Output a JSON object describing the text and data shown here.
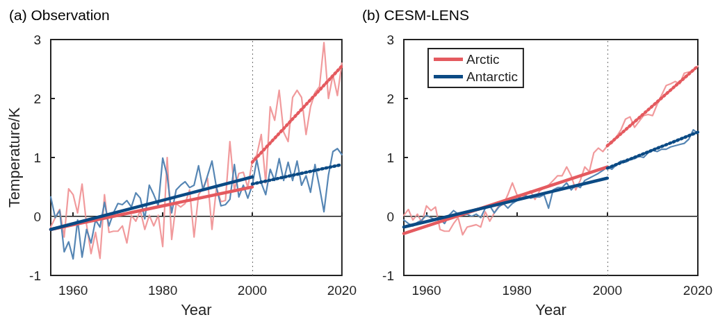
{
  "chart_data": [
    {
      "type": "line",
      "title": "(a) Observation",
      "xlabel": "Year",
      "ylabel": "Temperature/K",
      "xlim": [
        1955,
        2020
      ],
      "xticks": [
        1960,
        1980,
        2000,
        2020
      ],
      "ylim": [
        -1,
        3
      ],
      "yticks": [
        -1,
        0,
        1,
        2,
        3
      ],
      "grid": false,
      "legend": false,
      "marker": "none",
      "x": [
        1955,
        1956,
        1957,
        1958,
        1959,
        1960,
        1961,
        1962,
        1963,
        1964,
        1965,
        1966,
        1967,
        1968,
        1969,
        1970,
        1971,
        1972,
        1973,
        1974,
        1975,
        1976,
        1977,
        1978,
        1979,
        1980,
        1981,
        1982,
        1983,
        1984,
        1985,
        1986,
        1987,
        1988,
        1989,
        1990,
        1991,
        1992,
        1993,
        1994,
        1995,
        1996,
        1997,
        1998,
        1999,
        2000,
        2001,
        2002,
        2003,
        2004,
        2005,
        2006,
        2007,
        2008,
        2009,
        2010,
        2011,
        2012,
        2013,
        2014,
        2015,
        2016,
        2017,
        2018,
        2019,
        2020
      ],
      "ref_lines": [
        {
          "axis": "y",
          "value": 0,
          "color": "#808080",
          "line_style": "solid"
        },
        {
          "axis": "x",
          "value": 2000,
          "color": "#707070",
          "line_style": "dotted"
        }
      ],
      "series": [
        {
          "color": "#f19a9c",
          "line_style": "solid",
          "values": [
            -0.18,
            -0.02,
            0.12,
            -0.35,
            0.47,
            0.37,
            0.06,
            0.55,
            -0.14,
            -0.63,
            -0.27,
            -0.71,
            0.37,
            -0.27,
            -0.25,
            -0.25,
            -0.16,
            -0.45,
            0.02,
            -0.08,
            0.1,
            -0.22,
            0.02,
            -0.16,
            0.02,
            -0.51,
            1.0,
            -0.39,
            0.22,
            0.16,
            0.22,
            0.45,
            -0.35,
            0.37,
            0.49,
            0.65,
            -0.22,
            0.49,
            0.25,
            0.27,
            1.27,
            0.45,
            0.73,
            0.75,
            0.49,
            0.94,
            1.04,
            1.39,
            0.57,
            1.86,
            1.63,
            2.14,
            1.43,
            1.27,
            2.02,
            2.14,
            2.02,
            1.39,
            1.86,
            2.1,
            2.2,
            2.95,
            2.0,
            2.4,
            2.05,
            2.6
          ]
        },
        {
          "color": "#5686b4",
          "line_style": "solid",
          "values": [
            0.33,
            -0.02,
            0.1,
            -0.6,
            -0.43,
            -0.72,
            -0.06,
            -0.69,
            -0.22,
            -0.45,
            -0.06,
            -0.18,
            0.24,
            -0.16,
            0.06,
            0.22,
            0.2,
            0.27,
            0.16,
            0.4,
            0.31,
            -0.04,
            0.53,
            0.37,
            0.18,
            0.99,
            0.69,
            0.06,
            0.45,
            0.53,
            0.59,
            0.49,
            0.53,
            0.86,
            0.45,
            0.69,
            0.94,
            0.49,
            0.18,
            0.2,
            0.29,
            0.88,
            0.33,
            0.53,
            0.31,
            0.53,
            0.96,
            0.57,
            0.37,
            0.8,
            0.61,
            0.98,
            0.61,
            0.92,
            0.61,
            0.94,
            0.53,
            0.69,
            0.41,
            0.88,
            0.5,
            0.08,
            0.7,
            1.1,
            1.15,
            1.05
          ]
        },
        {
          "color": "#e45a5f",
          "line_style": "solid",
          "x": [
            1955,
            2000
          ],
          "values": [
            -0.22,
            0.5
          ]
        },
        {
          "color": "#0b4a84",
          "line_style": "solid",
          "x": [
            1955,
            2000
          ],
          "values": [
            -0.22,
            0.67
          ]
        },
        {
          "color": "#e45a5f",
          "line_style": "dotted",
          "x": [
            2000,
            2020
          ],
          "values": [
            0.92,
            2.55
          ]
        },
        {
          "color": "#0b4a84",
          "line_style": "dotted",
          "x": [
            2000,
            2020
          ],
          "values": [
            0.55,
            0.88
          ]
        }
      ]
    },
    {
      "type": "line",
      "title": "(b) CESM-LENS",
      "xlabel": "Year",
      "xlim": [
        1955,
        2020
      ],
      "xticks": [
        1960,
        1980,
        2000,
        2020
      ],
      "ylim": [
        -1,
        3
      ],
      "yticks": [
        -1,
        0,
        1,
        2,
        3
      ],
      "grid": false,
      "legend": "top left",
      "marker": "none",
      "x": [
        1955,
        1956,
        1957,
        1958,
        1959,
        1960,
        1961,
        1962,
        1963,
        1964,
        1965,
        1966,
        1967,
        1968,
        1969,
        1970,
        1971,
        1972,
        1973,
        1974,
        1975,
        1976,
        1977,
        1978,
        1979,
        1980,
        1981,
        1982,
        1983,
        1984,
        1985,
        1986,
        1987,
        1988,
        1989,
        1990,
        1991,
        1992,
        1993,
        1994,
        1995,
        1996,
        1997,
        1998,
        1999,
        2000,
        2001,
        2002,
        2003,
        2004,
        2005,
        2006,
        2007,
        2008,
        2009,
        2010,
        2011,
        2012,
        2013,
        2014,
        2015,
        2016,
        2017,
        2018,
        2019,
        2020
      ],
      "ref_lines": [
        {
          "axis": "y",
          "value": 0,
          "color": "#808080",
          "line_style": "solid"
        },
        {
          "axis": "x",
          "value": 2000,
          "color": "#707070",
          "line_style": "dotted"
        }
      ],
      "series": [
        {
          "color": "#f19a9c",
          "line_style": "solid",
          "values": [
            0.02,
            0.12,
            -0.06,
            0.04,
            -0.1,
            0.18,
            0.1,
            0.16,
            -0.22,
            -0.25,
            -0.25,
            -0.12,
            -0.02,
            -0.31,
            -0.18,
            -0.16,
            -0.14,
            -0.18,
            0.08,
            -0.08,
            0.06,
            0.18,
            0.2,
            0.37,
            0.57,
            0.37,
            0.31,
            0.37,
            0.43,
            0.29,
            0.43,
            0.49,
            0.53,
            0.61,
            0.69,
            0.69,
            0.84,
            0.69,
            0.45,
            0.61,
            0.84,
            0.76,
            1.08,
            1.16,
            1.1,
            1.2,
            1.24,
            1.35,
            1.47,
            1.65,
            1.69,
            1.51,
            1.61,
            1.71,
            1.73,
            1.71,
            1.9,
            2.06,
            2.22,
            2.25,
            2.29,
            2.25,
            2.43,
            2.45,
            2.47,
            2.55
          ]
        },
        {
          "color": "#5686b4",
          "line_style": "solid",
          "values": [
            -0.06,
            -0.12,
            -0.16,
            -0.1,
            -0.06,
            0.02,
            -0.02,
            -0.06,
            -0.04,
            -0.12,
            0.02,
            0.1,
            0.04,
            0.02,
            0.04,
            0,
            0.04,
            -0.02,
            0.14,
            0.18,
            0.06,
            0.16,
            0.22,
            0.14,
            0.22,
            0.27,
            0.37,
            0.35,
            0.31,
            0.33,
            0.33,
            0.37,
            0.14,
            0.45,
            0.49,
            0.49,
            0.57,
            0.45,
            0.53,
            0.49,
            0.61,
            0.65,
            0.69,
            0.73,
            0.78,
            0.84,
            0.8,
            0.88,
            0.94,
            0.92,
            0.96,
            0.98,
            1.02,
            1.0,
            1.08,
            1.12,
            1.1,
            1.14,
            1.14,
            1.18,
            1.2,
            1.22,
            1.24,
            1.31,
            1.47,
            1.41
          ]
        },
        {
          "name": "Arctic",
          "color": "#e45a5f",
          "line_style": "solid",
          "x": [
            1955,
            2000
          ],
          "values": [
            -0.29,
            0.84
          ]
        },
        {
          "name": "Antarctic",
          "color": "#0b4a84",
          "line_style": "solid",
          "x": [
            1955,
            2000
          ],
          "values": [
            -0.18,
            0.65
          ]
        },
        {
          "color": "#e45a5f",
          "line_style": "dotted",
          "x": [
            2000,
            2020
          ],
          "values": [
            1.2,
            2.55
          ]
        },
        {
          "color": "#0b4a84",
          "line_style": "dotted",
          "x": [
            2000,
            2020
          ],
          "values": [
            0.82,
            1.43
          ]
        }
      ]
    }
  ]
}
